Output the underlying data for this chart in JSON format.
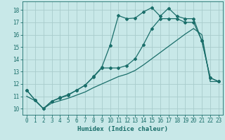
{
  "xlabel": "Humidex (Indice chaleur)",
  "background_color": "#c8e8e8",
  "grid_color": "#a8cccc",
  "line_color": "#1a6e6a",
  "ylim": [
    9.5,
    18.7
  ],
  "xlim": [
    -0.5,
    23.5
  ],
  "yticks": [
    10,
    11,
    12,
    13,
    14,
    15,
    16,
    17,
    18
  ],
  "xticks": [
    0,
    1,
    2,
    3,
    4,
    5,
    6,
    7,
    8,
    9,
    10,
    11,
    12,
    13,
    14,
    15,
    16,
    17,
    18,
    19,
    20,
    21,
    22,
    23
  ],
  "line1_x": [
    0,
    1,
    2,
    3,
    4,
    5,
    6,
    7,
    8,
    9,
    10,
    11,
    12,
    13,
    14,
    15,
    16,
    17,
    18,
    19,
    20,
    21,
    22,
    23
  ],
  "line1_y": [
    11.5,
    10.7,
    10.0,
    10.6,
    10.85,
    11.1,
    11.5,
    11.9,
    12.6,
    13.35,
    15.15,
    17.55,
    17.3,
    17.35,
    17.85,
    18.2,
    17.5,
    18.15,
    17.5,
    17.3,
    17.3,
    15.5,
    12.5,
    12.2
  ],
  "line2_x": [
    0,
    1,
    2,
    3,
    4,
    5,
    6,
    7,
    8,
    9,
    10,
    11,
    12,
    13,
    14,
    15,
    16,
    17,
    18,
    19,
    20,
    21,
    22,
    23
  ],
  "line2_y": [
    11.5,
    10.7,
    10.0,
    10.6,
    10.9,
    11.15,
    11.5,
    11.9,
    12.55,
    13.3,
    13.3,
    13.3,
    13.5,
    14.05,
    15.2,
    16.5,
    17.3,
    17.3,
    17.3,
    17.0,
    17.0,
    15.5,
    12.5,
    12.2
  ],
  "line3_x": [
    0,
    1,
    2,
    3,
    4,
    5,
    6,
    7,
    8,
    9,
    10,
    11,
    12,
    13,
    14,
    15,
    16,
    17,
    18,
    19,
    20,
    21,
    22,
    23
  ],
  "line3_y": [
    11.0,
    10.65,
    10.0,
    10.45,
    10.65,
    10.85,
    11.1,
    11.35,
    11.7,
    12.0,
    12.3,
    12.6,
    12.8,
    13.1,
    13.55,
    14.05,
    14.55,
    15.05,
    15.55,
    16.05,
    16.5,
    16.0,
    12.2,
    12.2
  ],
  "marker": "D",
  "marker_size": 2.0,
  "line_width": 0.9,
  "xlabel_fontsize": 6.5,
  "tick_fontsize": 5.5
}
